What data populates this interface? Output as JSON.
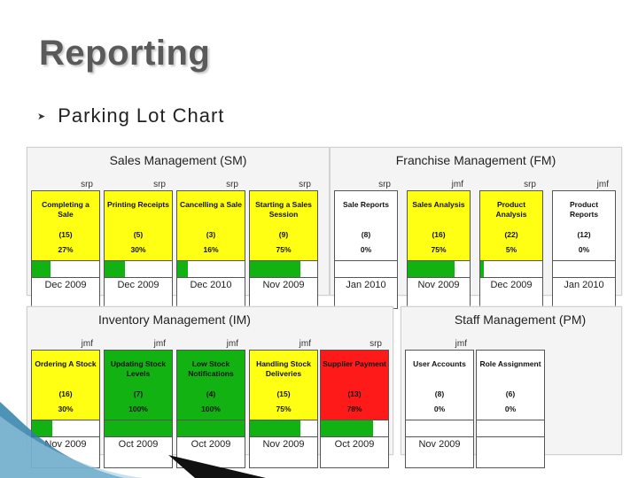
{
  "title": "Reporting",
  "bullet": {
    "icon": "arrow-bullet-icon",
    "text": "Parking Lot Chart"
  },
  "colors": {
    "yellow": "#ffff14",
    "green": "#12b212",
    "red": "#ff1a1a",
    "white": "#ffffff"
  },
  "panels": [
    {
      "title": "Sales Management (SM)",
      "items": [
        {
          "owner": "srp",
          "name": "Completing a Sale",
          "count": "(15)",
          "pct": "27%",
          "progress": 0.27,
          "date": "Dec 2009",
          "color": "yellow"
        },
        {
          "owner": "srp",
          "name": "Printing Receipts",
          "count": "(5)",
          "pct": "30%",
          "progress": 0.3,
          "date": "Dec 2009",
          "color": "yellow"
        },
        {
          "owner": "srp",
          "name": "Cancelling a Sale",
          "count": "(3)",
          "pct": "16%",
          "progress": 0.16,
          "date": "Dec 2010",
          "color": "yellow"
        },
        {
          "owner": "srp",
          "name": "Starting a Sales Session",
          "count": "(9)",
          "pct": "75%",
          "progress": 0.75,
          "date": "Nov 2009",
          "color": "yellow"
        }
      ]
    },
    {
      "title": "Franchise Management (FM)",
      "items": [
        {
          "owner": "srp",
          "name": "Sale Reports",
          "count": "(8)",
          "pct": "0%",
          "progress": 0,
          "date": "Jan 2010",
          "color": "white"
        },
        {
          "owner": "jmf",
          "name": "Sales Analysis",
          "count": "(16)",
          "pct": "75%",
          "progress": 0.75,
          "date": "Nov 2009",
          "color": "yellow"
        },
        {
          "owner": "srp",
          "name": "Product Analysis",
          "count": "(22)",
          "pct": "5%",
          "progress": 0.05,
          "date": "Dec 2009",
          "color": "yellow"
        },
        {
          "owner": "jmf",
          "name": "Product Reports",
          "count": "(12)",
          "pct": "0%",
          "progress": 0,
          "date": "Jan 2010",
          "color": "white"
        }
      ]
    },
    {
      "title": "Inventory Management (IM)",
      "items": [
        {
          "owner": "jmf",
          "name": "Ordering A Stock",
          "count": "(16)",
          "pct": "30%",
          "progress": 0.3,
          "date": "Nov 2009",
          "color": "yellow"
        },
        {
          "owner": "jmf",
          "name": "Updating Stock Levels",
          "count": "(7)",
          "pct": "100%",
          "progress": 1.0,
          "date": "Oct 2009",
          "color": "green"
        },
        {
          "owner": "jmf",
          "name": "Low Stock Notifications",
          "count": "(4)",
          "pct": "100%",
          "progress": 1.0,
          "date": "Oct 2009",
          "color": "green"
        },
        {
          "owner": "jmf",
          "name": "Handling Stock Deliveries",
          "count": "(15)",
          "pct": "75%",
          "progress": 0.75,
          "date": "Nov 2009",
          "color": "yellow"
        },
        {
          "owner": "srp",
          "name": "Supplier Payment",
          "count": "(13)",
          "pct": "78%",
          "progress": 0.78,
          "date": "Oct 2009",
          "color": "red"
        }
      ]
    },
    {
      "title": "Staff Management (PM)",
      "items": [
        {
          "owner": "jmf",
          "name": "User Accounts",
          "count": "(8)",
          "pct": "0%",
          "progress": 0,
          "date": "Nov 2009",
          "color": "white"
        },
        {
          "owner": "",
          "name": "Role Assignment",
          "count": "(6)",
          "pct": "0%",
          "progress": 0,
          "date": "",
          "color": "white"
        }
      ]
    }
  ]
}
